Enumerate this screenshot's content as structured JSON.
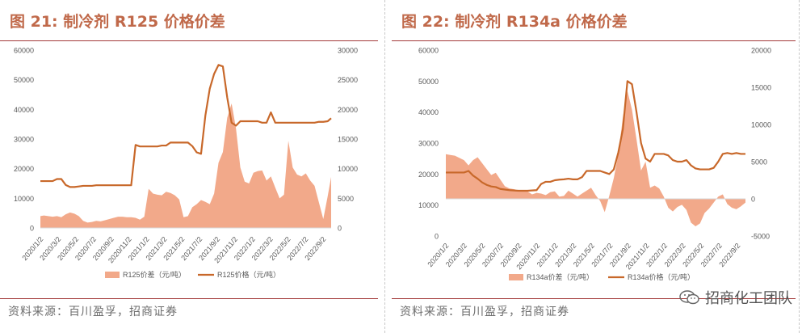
{
  "figures": [
    {
      "title": "图 21:  制冷剂 R125 价格价差",
      "source": "资料来源：百川盈孚，招商证券",
      "chart_data": {
        "type": "area",
        "x_tick_labels": [
          "2020/1/2",
          "2020/3/2",
          "2020/5/2",
          "2020/7/2",
          "2020/9/2",
          "2020/11/2",
          "2021/1/2",
          "2021/3/2",
          "2021/5/2",
          "2021/7/2",
          "2021/9/2",
          "2021/11/2",
          "2022/1/2",
          "2022/3/2",
          "2022/5/2",
          "2022/7/2",
          "2022/9/2"
        ],
        "y_left_ticks": [
          0,
          10000,
          20000,
          30000,
          40000,
          50000,
          60000
        ],
        "y_left_range": [
          0,
          60000
        ],
        "y_right_ticks": [
          0,
          5000,
          10000,
          15000,
          20000,
          25000,
          30000
        ],
        "y_right_range": [
          0,
          30000
        ],
        "grid": false,
        "legend_position": "bottom",
        "x": [
          0,
          0.4,
          0.9,
          1.4,
          1.9,
          2.4,
          2.9,
          3.4,
          3.9,
          4.4,
          4.9,
          5.4,
          5.9,
          6.4,
          6.9,
          7.4,
          7.9,
          8.4,
          8.9,
          9.4,
          9.9,
          10.4,
          10.9,
          11.4,
          11.9,
          12.4,
          12.9,
          13.4,
          13.9,
          14.4,
          14.9,
          15.4,
          15.9,
          16.4,
          16.9,
          17.4,
          17.9,
          18.4,
          18.9,
          19.4,
          19.9,
          20.4,
          20.9,
          21.4,
          21.9,
          22.4,
          22.9,
          23.4,
          23.9,
          24.4,
          24.9,
          25.4,
          25.9,
          26.4,
          26.9,
          27.4,
          27.9,
          28.4,
          28.9,
          29.4,
          29.9,
          30.4,
          30.9,
          31.4,
          31.9,
          32.4,
          32.9,
          33.3
        ],
        "series": [
          {
            "name": "R125价差（元/吨）",
            "axis": "right",
            "values": [
              2000,
              2100,
              2000,
              1900,
              2000,
              1800,
              2300,
              2600,
              2400,
              2000,
              1200,
              900,
              1000,
              1200,
              1100,
              1300,
              1500,
              1700,
              1900,
              1900,
              1800,
              1800,
              1700,
              1400,
              1900,
              6600,
              5800,
              5600,
              5500,
              6100,
              5900,
              5500,
              4800,
              1800,
              2000,
              3500,
              4000,
              4700,
              4400,
              4000,
              5800,
              11000,
              12800,
              18600,
              21000,
              16800,
              10200,
              7800,
              7500,
              9300,
              9600,
              9700,
              8000,
              8700,
              6800,
              5000,
              5600,
              14700,
              10200,
              9000,
              8700,
              9200,
              8000,
              7100,
              4300,
              1500,
              5300,
              8600
            ]
          },
          {
            "name": "R125价格（元/吨）",
            "axis": "left",
            "values": [
              15800,
              15800,
              15800,
              15800,
              16500,
              16500,
              14500,
              13800,
              13800,
              14000,
              14200,
              14200,
              14200,
              14400,
              14400,
              14400,
              14400,
              14400,
              14400,
              14400,
              14400,
              14400,
              28000,
              27500,
              27500,
              27500,
              27500,
              27500,
              27800,
              27800,
              28800,
              28800,
              28800,
              28800,
              28800,
              27600,
              25500,
              25000,
              38000,
              47000,
              52000,
              55000,
              54500,
              44000,
              35500,
              34500,
              36000,
              36000,
              36000,
              36000,
              36000,
              35500,
              35500,
              39000,
              35500,
              35500,
              35500,
              35500,
              35500,
              35500,
              35500,
              35500,
              35500,
              35500,
              35800,
              35800,
              36000,
              37000
            ]
          }
        ]
      }
    },
    {
      "title": "图 22:  制冷剂 R134a 价格价差",
      "source": "资料来源：百川盈孚，招商证券",
      "chart_data": {
        "type": "area",
        "x_tick_labels": [
          "2020/1/2",
          "2020/3/2",
          "2020/5/2",
          "2020/7/2",
          "2020/9/2",
          "2020/11/2",
          "2021/1/2",
          "2021/3/2",
          "2021/5/2",
          "2021/7/2",
          "2021/9/2",
          "2021/11/2",
          "2022/1/2",
          "2022/3/2",
          "2022/5/2",
          "2022/7/2",
          "2022/9/2"
        ],
        "y_left_ticks": [
          0,
          10000,
          20000,
          30000,
          40000,
          50000,
          60000
        ],
        "y_left_range": [
          0,
          60000
        ],
        "y_right_ticks": [
          -5000,
          0,
          5000,
          10000,
          15000,
          20000
        ],
        "y_right_range": [
          -5000,
          20000
        ],
        "grid": false,
        "legend_position": "bottom",
        "x": [
          0,
          0.5,
          1,
          1.5,
          2,
          2.5,
          3,
          3.5,
          4,
          4.5,
          5,
          5.5,
          6,
          6.5,
          7,
          7.5,
          8,
          8.5,
          9,
          9.5,
          10,
          10.5,
          11,
          11.5,
          12,
          12.5,
          13,
          13.5,
          14,
          14.5,
          15,
          15.5,
          16,
          16.5,
          17,
          17.5,
          18,
          18.5,
          19,
          19.5,
          20,
          20.5,
          21,
          21.5,
          22,
          22.5,
          23,
          23.5,
          24,
          24.5,
          25,
          25.5,
          26,
          26.5,
          27,
          27.5,
          28,
          28.5,
          29,
          29.5,
          30,
          30.5,
          31,
          31.5,
          32,
          32.5,
          33
        ],
        "series": [
          {
            "name": "R134a价差（元/吨）",
            "axis": "right",
            "values": [
              6000,
              5900,
              5800,
              5500,
              5200,
              4500,
              5200,
              5600,
              4800,
              4000,
              3200,
              3500,
              2600,
              1700,
              1400,
              1300,
              1100,
              1100,
              1000,
              600,
              800,
              700,
              500,
              900,
              1000,
              300,
              400,
              1100,
              700,
              300,
              700,
              1100,
              1500,
              500,
              -300,
              -1800,
              400,
              2800,
              6000,
              11000,
              14500,
              12000,
              8000,
              3800,
              5000,
              1500,
              1800,
              1400,
              300,
              -1200,
              -1700,
              -1100,
              -800,
              -1500,
              -3200,
              -3700,
              -3300,
              -1900,
              -1300,
              -500,
              300,
              600,
              -700,
              -1200,
              -1400,
              -1000,
              -500
            ]
          },
          {
            "name": "R134a价格（元/吨）",
            "axis": "left",
            "values": [
              20500,
              20500,
              20500,
              20500,
              20500,
              21000,
              19500,
              18500,
              17300,
              16500,
              16000,
              15800,
              15200,
              15000,
              14800,
              14700,
              14600,
              14600,
              14600,
              14700,
              14800,
              16800,
              17500,
              17500,
              18000,
              18200,
              18300,
              18500,
              18300,
              18300,
              19000,
              21000,
              21000,
              21000,
              21000,
              20500,
              20000,
              21500,
              27000,
              34500,
              50000,
              49000,
              40000,
              30000,
              25000,
              24000,
              26500,
              26500,
              26500,
              26000,
              24500,
              24000,
              24000,
              24500,
              22800,
              21800,
              21500,
              21500,
              21500,
              22000,
              24000,
              26500,
              26800,
              26500,
              26800,
              26500,
              26500
            ]
          }
        ]
      }
    }
  ],
  "watermark": {
    "text": "招商化工团队",
    "icon": "wechat-icon"
  },
  "colors": {
    "area": "#f2a98a",
    "line": "#c8682a",
    "title": "#c0694a",
    "rule": "#a33a3a",
    "axis_text": "#595959"
  }
}
